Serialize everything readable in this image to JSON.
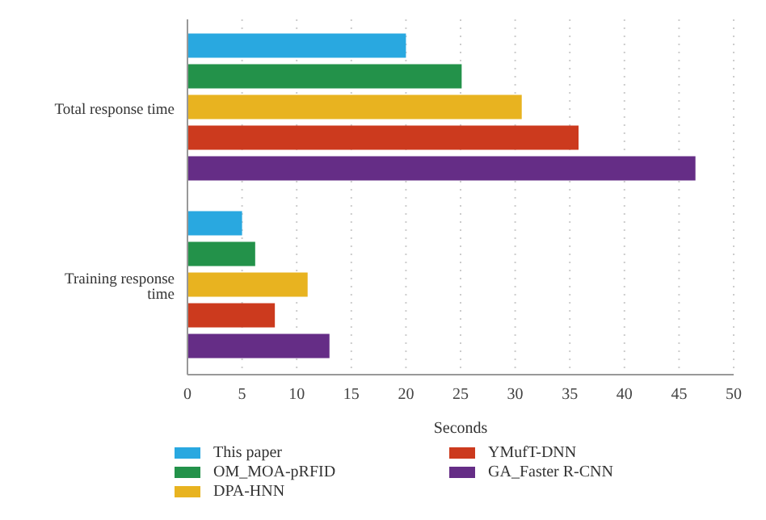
{
  "chart_data": {
    "type": "bar",
    "orientation": "horizontal",
    "xlabel": "Seconds",
    "categories": [
      "Total response time",
      "Training response time"
    ],
    "series": [
      {
        "name": "This paper",
        "color": "#29a8e0",
        "values": [
          20,
          5
        ]
      },
      {
        "name": "OM_MOA-pRFID",
        "color": "#23924a",
        "values": [
          25.1,
          6.2
        ]
      },
      {
        "name": "DPA-HNN",
        "color": "#e8b320",
        "values": [
          30.6,
          11
        ]
      },
      {
        "name": "YMufT-DNN",
        "color": "#cc3a1e",
        "values": [
          35.8,
          8
        ]
      },
      {
        "name": "GA_Faster R-CNN",
        "color": "#652d86",
        "values": [
          46.5,
          13
        ]
      }
    ],
    "xlim": [
      0,
      50
    ],
    "xticks": [
      0,
      5,
      10,
      15,
      20,
      25,
      30,
      35,
      40,
      45,
      50
    ],
    "grid": "x",
    "legend": "bottom"
  }
}
